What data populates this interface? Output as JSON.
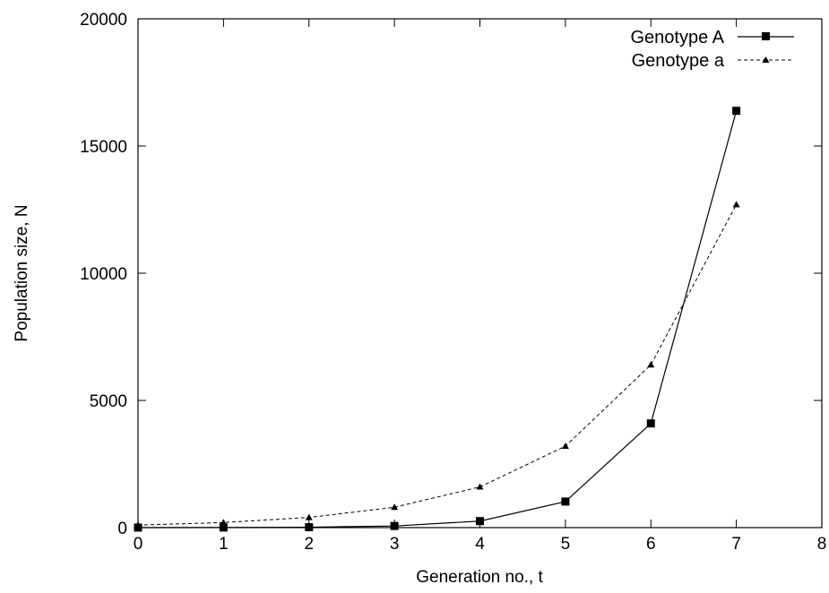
{
  "chart_data": {
    "type": "line",
    "title": "",
    "xlabel": "Generation no., t",
    "ylabel": "Population size, N",
    "xlim": [
      0,
      8
    ],
    "ylim": [
      0,
      20000
    ],
    "xticks": [
      0,
      1,
      2,
      3,
      4,
      5,
      6,
      7,
      8
    ],
    "yticks": [
      0,
      5000,
      10000,
      15000,
      20000
    ],
    "grid": false,
    "legend_position": "top-right",
    "series": [
      {
        "name": "Genotype A",
        "marker": "square",
        "line": "solid",
        "x": [
          0,
          1,
          2,
          3,
          4,
          5,
          6,
          7
        ],
        "y": [
          1,
          4,
          16,
          64,
          256,
          1024,
          4096,
          16384
        ]
      },
      {
        "name": "Genotype a",
        "marker": "triangle",
        "line": "dashed",
        "x": [
          0,
          1,
          2,
          3,
          4,
          5,
          6,
          7
        ],
        "y": [
          100,
          200,
          400,
          800,
          1600,
          3200,
          6400,
          12700
        ]
      }
    ]
  }
}
